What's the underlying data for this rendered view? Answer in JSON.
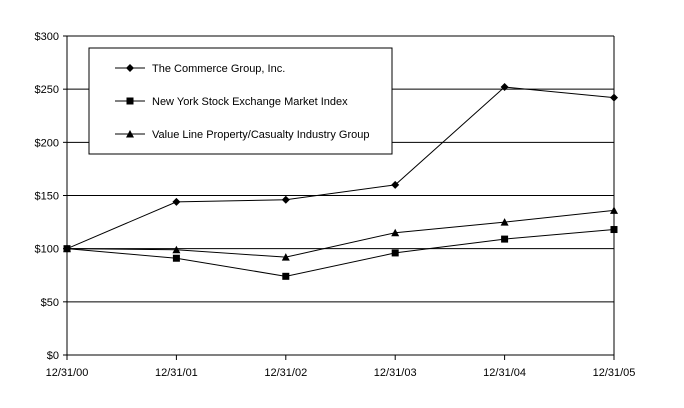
{
  "chart_data": {
    "type": "line",
    "categories": [
      "12/31/00",
      "12/31/01",
      "12/31/02",
      "12/31/03",
      "12/31/04",
      "12/31/05"
    ],
    "ylim": [
      0,
      300
    ],
    "yticks": [
      0,
      50,
      100,
      150,
      200,
      250,
      300
    ],
    "ytick_labels": [
      "$0",
      "$50",
      "$100",
      "$150",
      "$200",
      "$250",
      "$300"
    ],
    "grid": true,
    "legend_position": "top-left",
    "colors": {
      "line": "#000000",
      "grid": "#000000",
      "background": "#ffffff"
    },
    "series": [
      {
        "name": "The Commerce Group, Inc.",
        "marker": "diamond",
        "values": [
          100,
          144,
          146,
          160,
          252,
          242
        ]
      },
      {
        "name": "New York Stock Exchange Market Index",
        "marker": "square",
        "values": [
          100,
          91,
          74,
          96,
          109,
          118
        ]
      },
      {
        "name": "Value Line Property/Casualty Industry Group",
        "marker": "triangle",
        "values": [
          100,
          99,
          92,
          115,
          125,
          136
        ]
      }
    ]
  }
}
